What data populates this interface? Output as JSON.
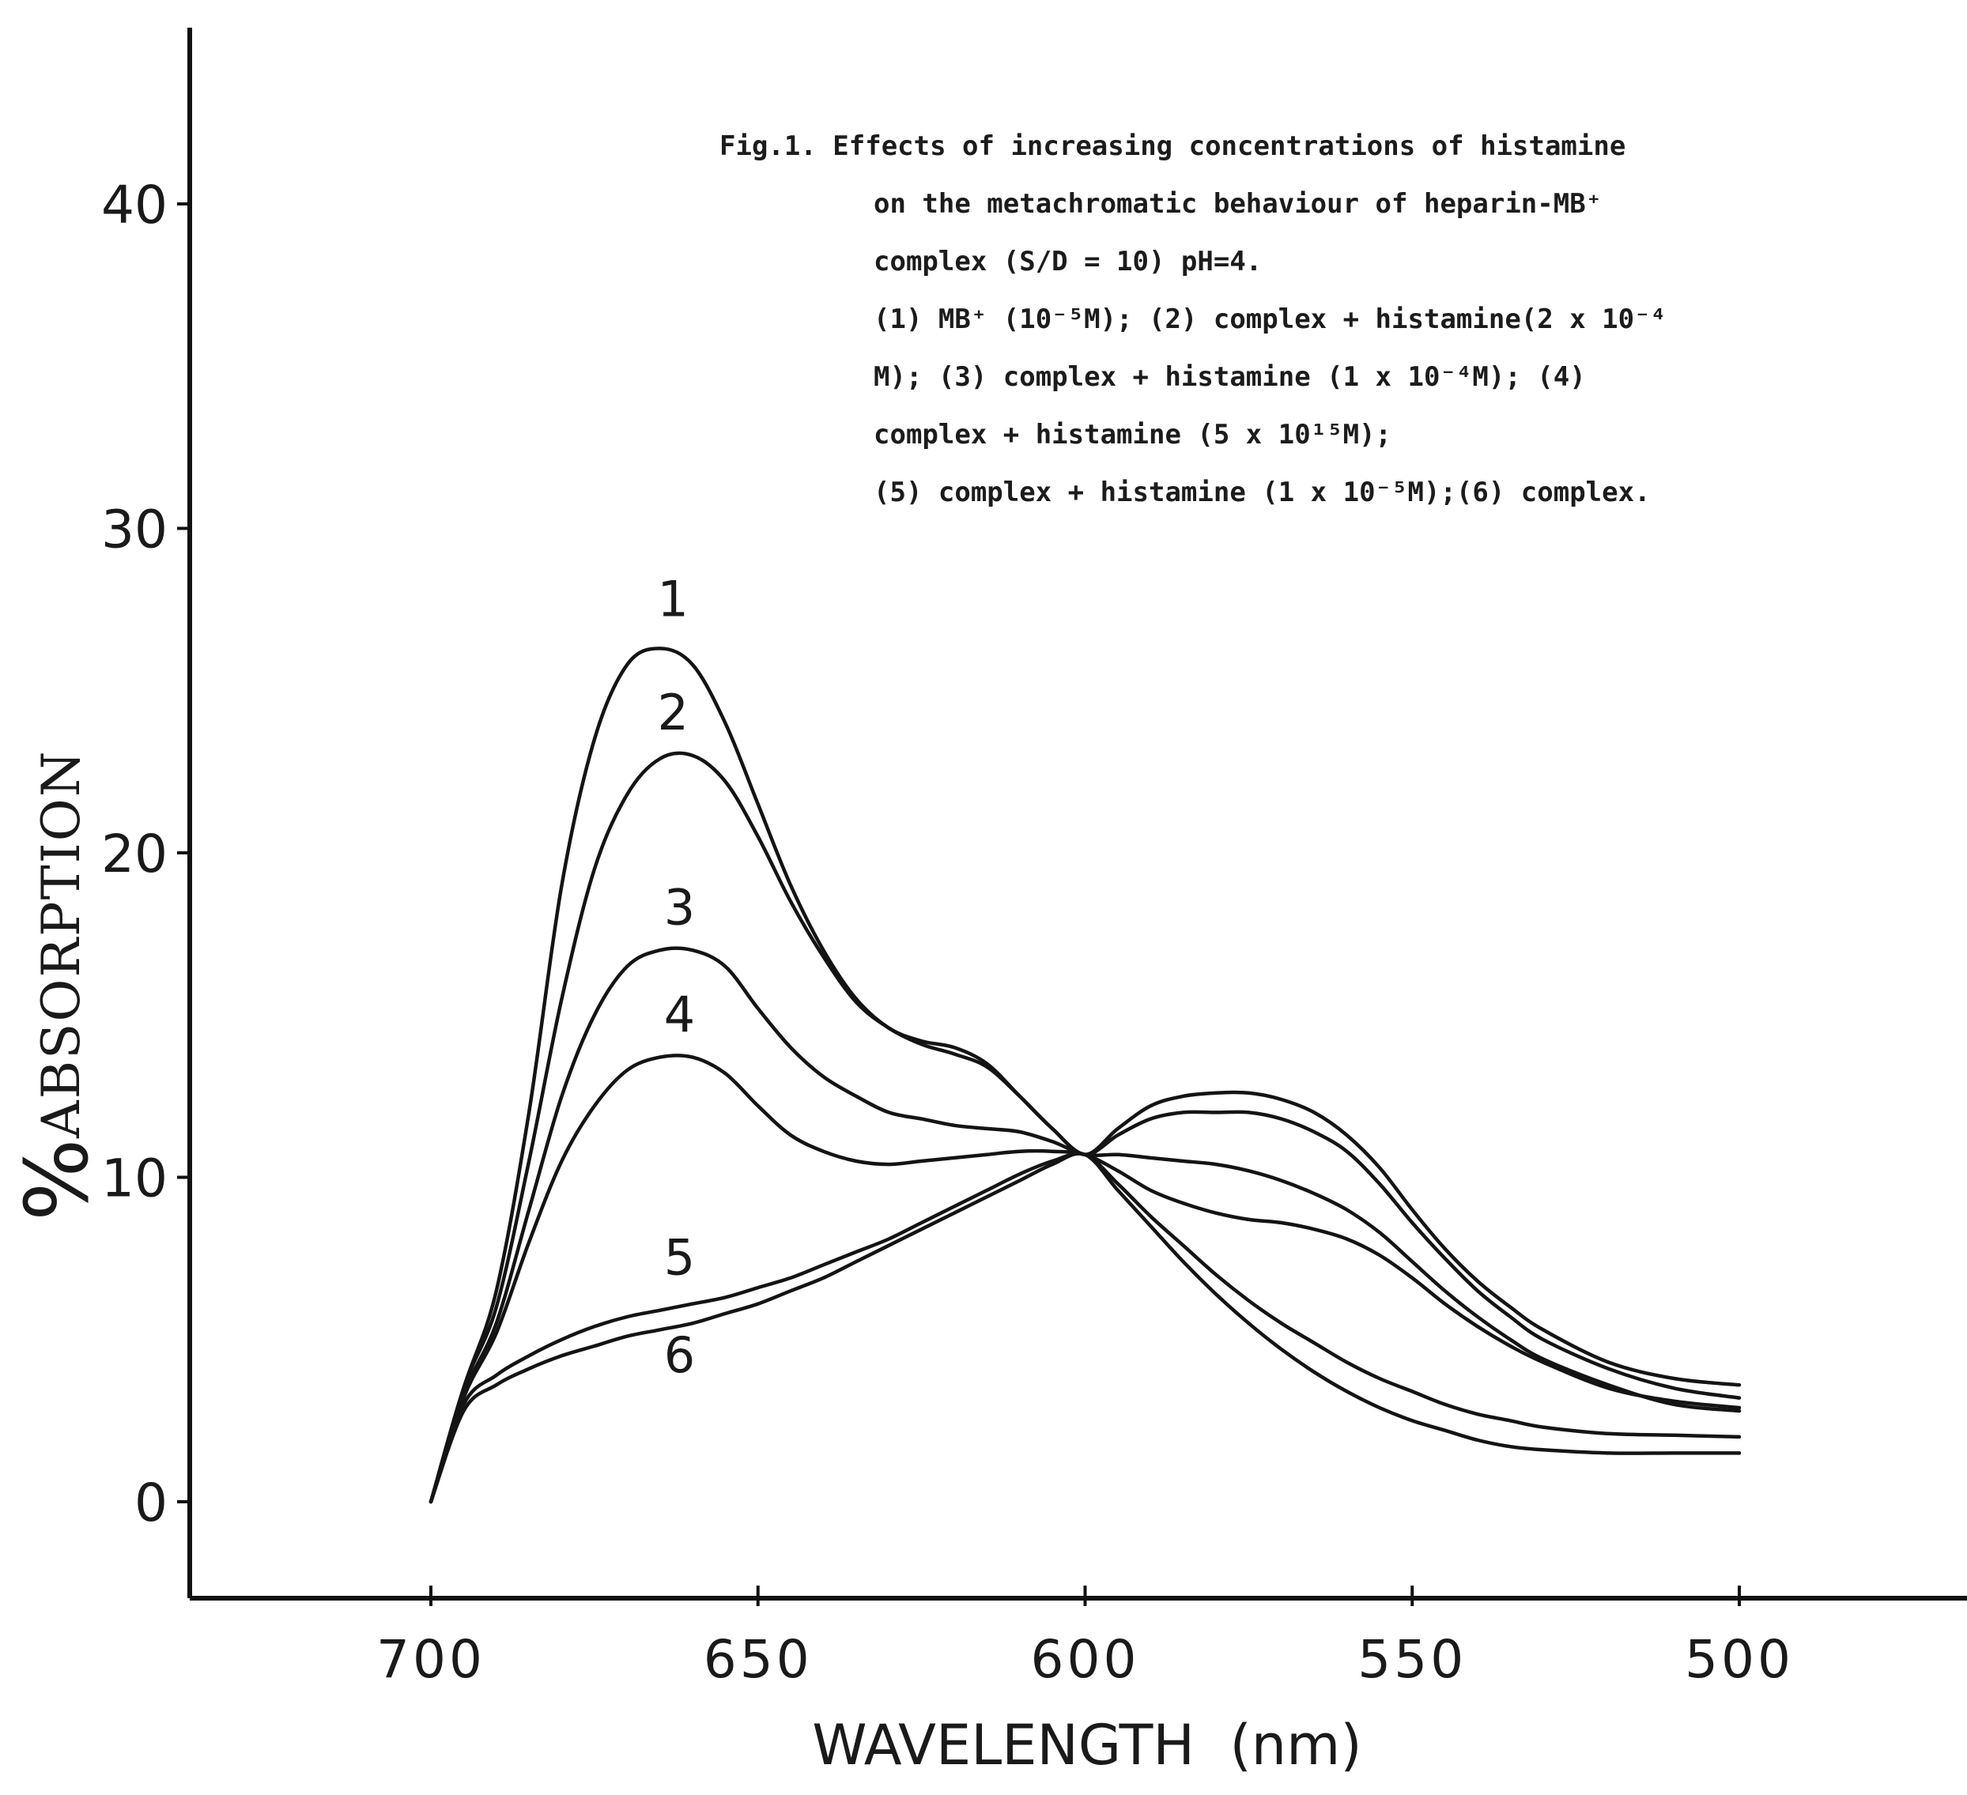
{
  "chart_data": {
    "type": "line",
    "xlabel": "WAVELENGTH  (nm)",
    "ylabel": "%ABSORPTION",
    "ylabel_prefix": "%",
    "ylabel_main": "ABSORPTION",
    "xlim": [
      700,
      500
    ],
    "ylim": [
      0,
      40
    ],
    "x_ticks": [
      700,
      650,
      600,
      550,
      500
    ],
    "y_ticks": [
      0,
      10,
      20,
      30,
      40
    ],
    "x_tick_labels": [
      "700",
      "650",
      "600",
      "550",
      "500"
    ],
    "y_tick_labels": [
      "0",
      "10",
      "20",
      "30",
      "40"
    ],
    "caption_lines": [
      "Fig.1.  Effects of increasing concentrations of histamine",
      "on the metachromatic behaviour of heparin-MB⁺",
      "complex (S/D = 10) pH=4.",
      "(1) MB⁺ (10⁻⁵M); (2) complex + histamine(2 x 10⁻⁴",
      "M); (3) complex + histamine (1 x 10⁻⁴M); (4)",
      "complex + histamine (5 x 10¹⁵M);",
      "(5) complex + histamine (1 x 10⁻⁵M);(6) complex."
    ],
    "series": [
      {
        "name": "1",
        "x": [
          700,
          695,
          690,
          685,
          680,
          675,
          670,
          665,
          660,
          655,
          650,
          645,
          640,
          635,
          630,
          625,
          620,
          615,
          610,
          605,
          600,
          595,
          590,
          585,
          580,
          575,
          570,
          565,
          560,
          555,
          550,
          545,
          540,
          535,
          530,
          520,
          510,
          500
        ],
        "y": [
          0,
          3.5,
          6.5,
          12,
          19,
          23.5,
          25.8,
          26.3,
          25.8,
          24,
          21.5,
          19,
          17,
          15.5,
          14.6,
          14.2,
          14,
          13.5,
          12.5,
          11.5,
          10.7,
          11.5,
          12.2,
          12.5,
          12.6,
          12.6,
          12.4,
          12,
          11.3,
          10.3,
          9,
          7.8,
          6.8,
          6,
          5.3,
          4.3,
          3.8,
          3.6
        ]
      },
      {
        "name": "2",
        "x": [
          700,
          695,
          690,
          685,
          680,
          675,
          670,
          665,
          660,
          655,
          650,
          645,
          640,
          635,
          630,
          625,
          620,
          615,
          610,
          605,
          600,
          595,
          590,
          585,
          580,
          575,
          570,
          565,
          560,
          555,
          550,
          545,
          540,
          535,
          530,
          520,
          510,
          500
        ],
        "y": [
          0,
          3.5,
          6,
          10.5,
          15.5,
          19.5,
          21.8,
          22.9,
          23,
          22.2,
          20.5,
          18.5,
          16.8,
          15.4,
          14.6,
          14.1,
          13.8,
          13.4,
          12.5,
          11.5,
          10.7,
          11.3,
          11.8,
          12,
          12,
          12,
          11.8,
          11.4,
          10.8,
          9.8,
          8.6,
          7.5,
          6.5,
          5.7,
          5,
          4.1,
          3.5,
          3.2
        ]
      },
      {
        "name": "3",
        "x": [
          700,
          695,
          690,
          685,
          680,
          675,
          670,
          665,
          660,
          655,
          650,
          645,
          640,
          635,
          630,
          625,
          620,
          615,
          610,
          605,
          600,
          595,
          590,
          585,
          580,
          575,
          570,
          565,
          560,
          555,
          550,
          545,
          540,
          535,
          530,
          520,
          510,
          500
        ],
        "y": [
          0,
          3.3,
          5.5,
          9,
          12.5,
          15,
          16.5,
          17,
          17,
          16.5,
          15.2,
          14,
          13.1,
          12.5,
          12,
          11.8,
          11.6,
          11.5,
          11.4,
          11.1,
          10.7,
          10.7,
          10.6,
          10.5,
          10.4,
          10.2,
          9.9,
          9.5,
          9,
          8.3,
          7.4,
          6.5,
          5.7,
          5,
          4.4,
          3.6,
          3,
          2.8
        ]
      },
      {
        "name": "4",
        "x": [
          700,
          695,
          690,
          685,
          680,
          675,
          670,
          665,
          660,
          655,
          650,
          645,
          640,
          635,
          630,
          625,
          620,
          615,
          610,
          605,
          600,
          595,
          590,
          585,
          580,
          575,
          570,
          565,
          560,
          555,
          550,
          545,
          540,
          535,
          530,
          520,
          510,
          500
        ],
        "y": [
          0,
          3.2,
          5.2,
          8,
          10.5,
          12.2,
          13.3,
          13.7,
          13.7,
          13.2,
          12.2,
          11.3,
          10.8,
          10.5,
          10.4,
          10.5,
          10.6,
          10.7,
          10.8,
          10.8,
          10.7,
          10.2,
          9.6,
          9.2,
          8.9,
          8.7,
          8.6,
          8.4,
          8.1,
          7.6,
          6.9,
          6.1,
          5.4,
          4.8,
          4.3,
          3.5,
          3.1,
          2.9
        ]
      },
      {
        "name": "5",
        "x": [
          700,
          695,
          690,
          685,
          680,
          675,
          670,
          665,
          660,
          655,
          650,
          645,
          640,
          635,
          630,
          625,
          620,
          615,
          610,
          605,
          600,
          595,
          590,
          585,
          580,
          575,
          570,
          565,
          560,
          555,
          550,
          545,
          540,
          535,
          530,
          520,
          510,
          500
        ],
        "y": [
          0,
          3,
          3.9,
          4.5,
          5,
          5.4,
          5.7,
          5.9,
          6.1,
          6.3,
          6.6,
          6.9,
          7.3,
          7.7,
          8.1,
          8.6,
          9.1,
          9.6,
          10.1,
          10.5,
          10.7,
          9.8,
          8.8,
          7.9,
          7,
          6.2,
          5.5,
          4.9,
          4.3,
          3.8,
          3.4,
          3,
          2.7,
          2.5,
          2.3,
          2.1,
          2.05,
          2
        ]
      },
      {
        "name": "6",
        "x": [
          700,
          695,
          690,
          685,
          680,
          675,
          670,
          665,
          660,
          655,
          650,
          645,
          640,
          635,
          630,
          625,
          620,
          615,
          610,
          605,
          600,
          595,
          590,
          585,
          580,
          575,
          570,
          565,
          560,
          555,
          550,
          545,
          540,
          535,
          530,
          520,
          510,
          500
        ],
        "y": [
          0,
          2.8,
          3.6,
          4.1,
          4.5,
          4.8,
          5.1,
          5.3,
          5.5,
          5.8,
          6.1,
          6.5,
          6.9,
          7.4,
          7.9,
          8.4,
          8.9,
          9.4,
          9.9,
          10.4,
          10.7,
          9.6,
          8.5,
          7.4,
          6.4,
          5.5,
          4.7,
          4,
          3.4,
          2.9,
          2.5,
          2.2,
          1.9,
          1.7,
          1.6,
          1.5,
          1.5,
          1.5
        ]
      }
    ],
    "curve_labels": [
      {
        "text": "1",
        "x": 663,
        "y": 27.3
      },
      {
        "text": "2",
        "x": 663,
        "y": 23.8
      },
      {
        "text": "3",
        "x": 662,
        "y": 17.8
      },
      {
        "text": "4",
        "x": 662,
        "y": 14.5
      },
      {
        "text": "5",
        "x": 662,
        "y": 7.0
      },
      {
        "text": "6",
        "x": 662,
        "y": 4.0
      }
    ],
    "grid": false,
    "legend": "none"
  }
}
